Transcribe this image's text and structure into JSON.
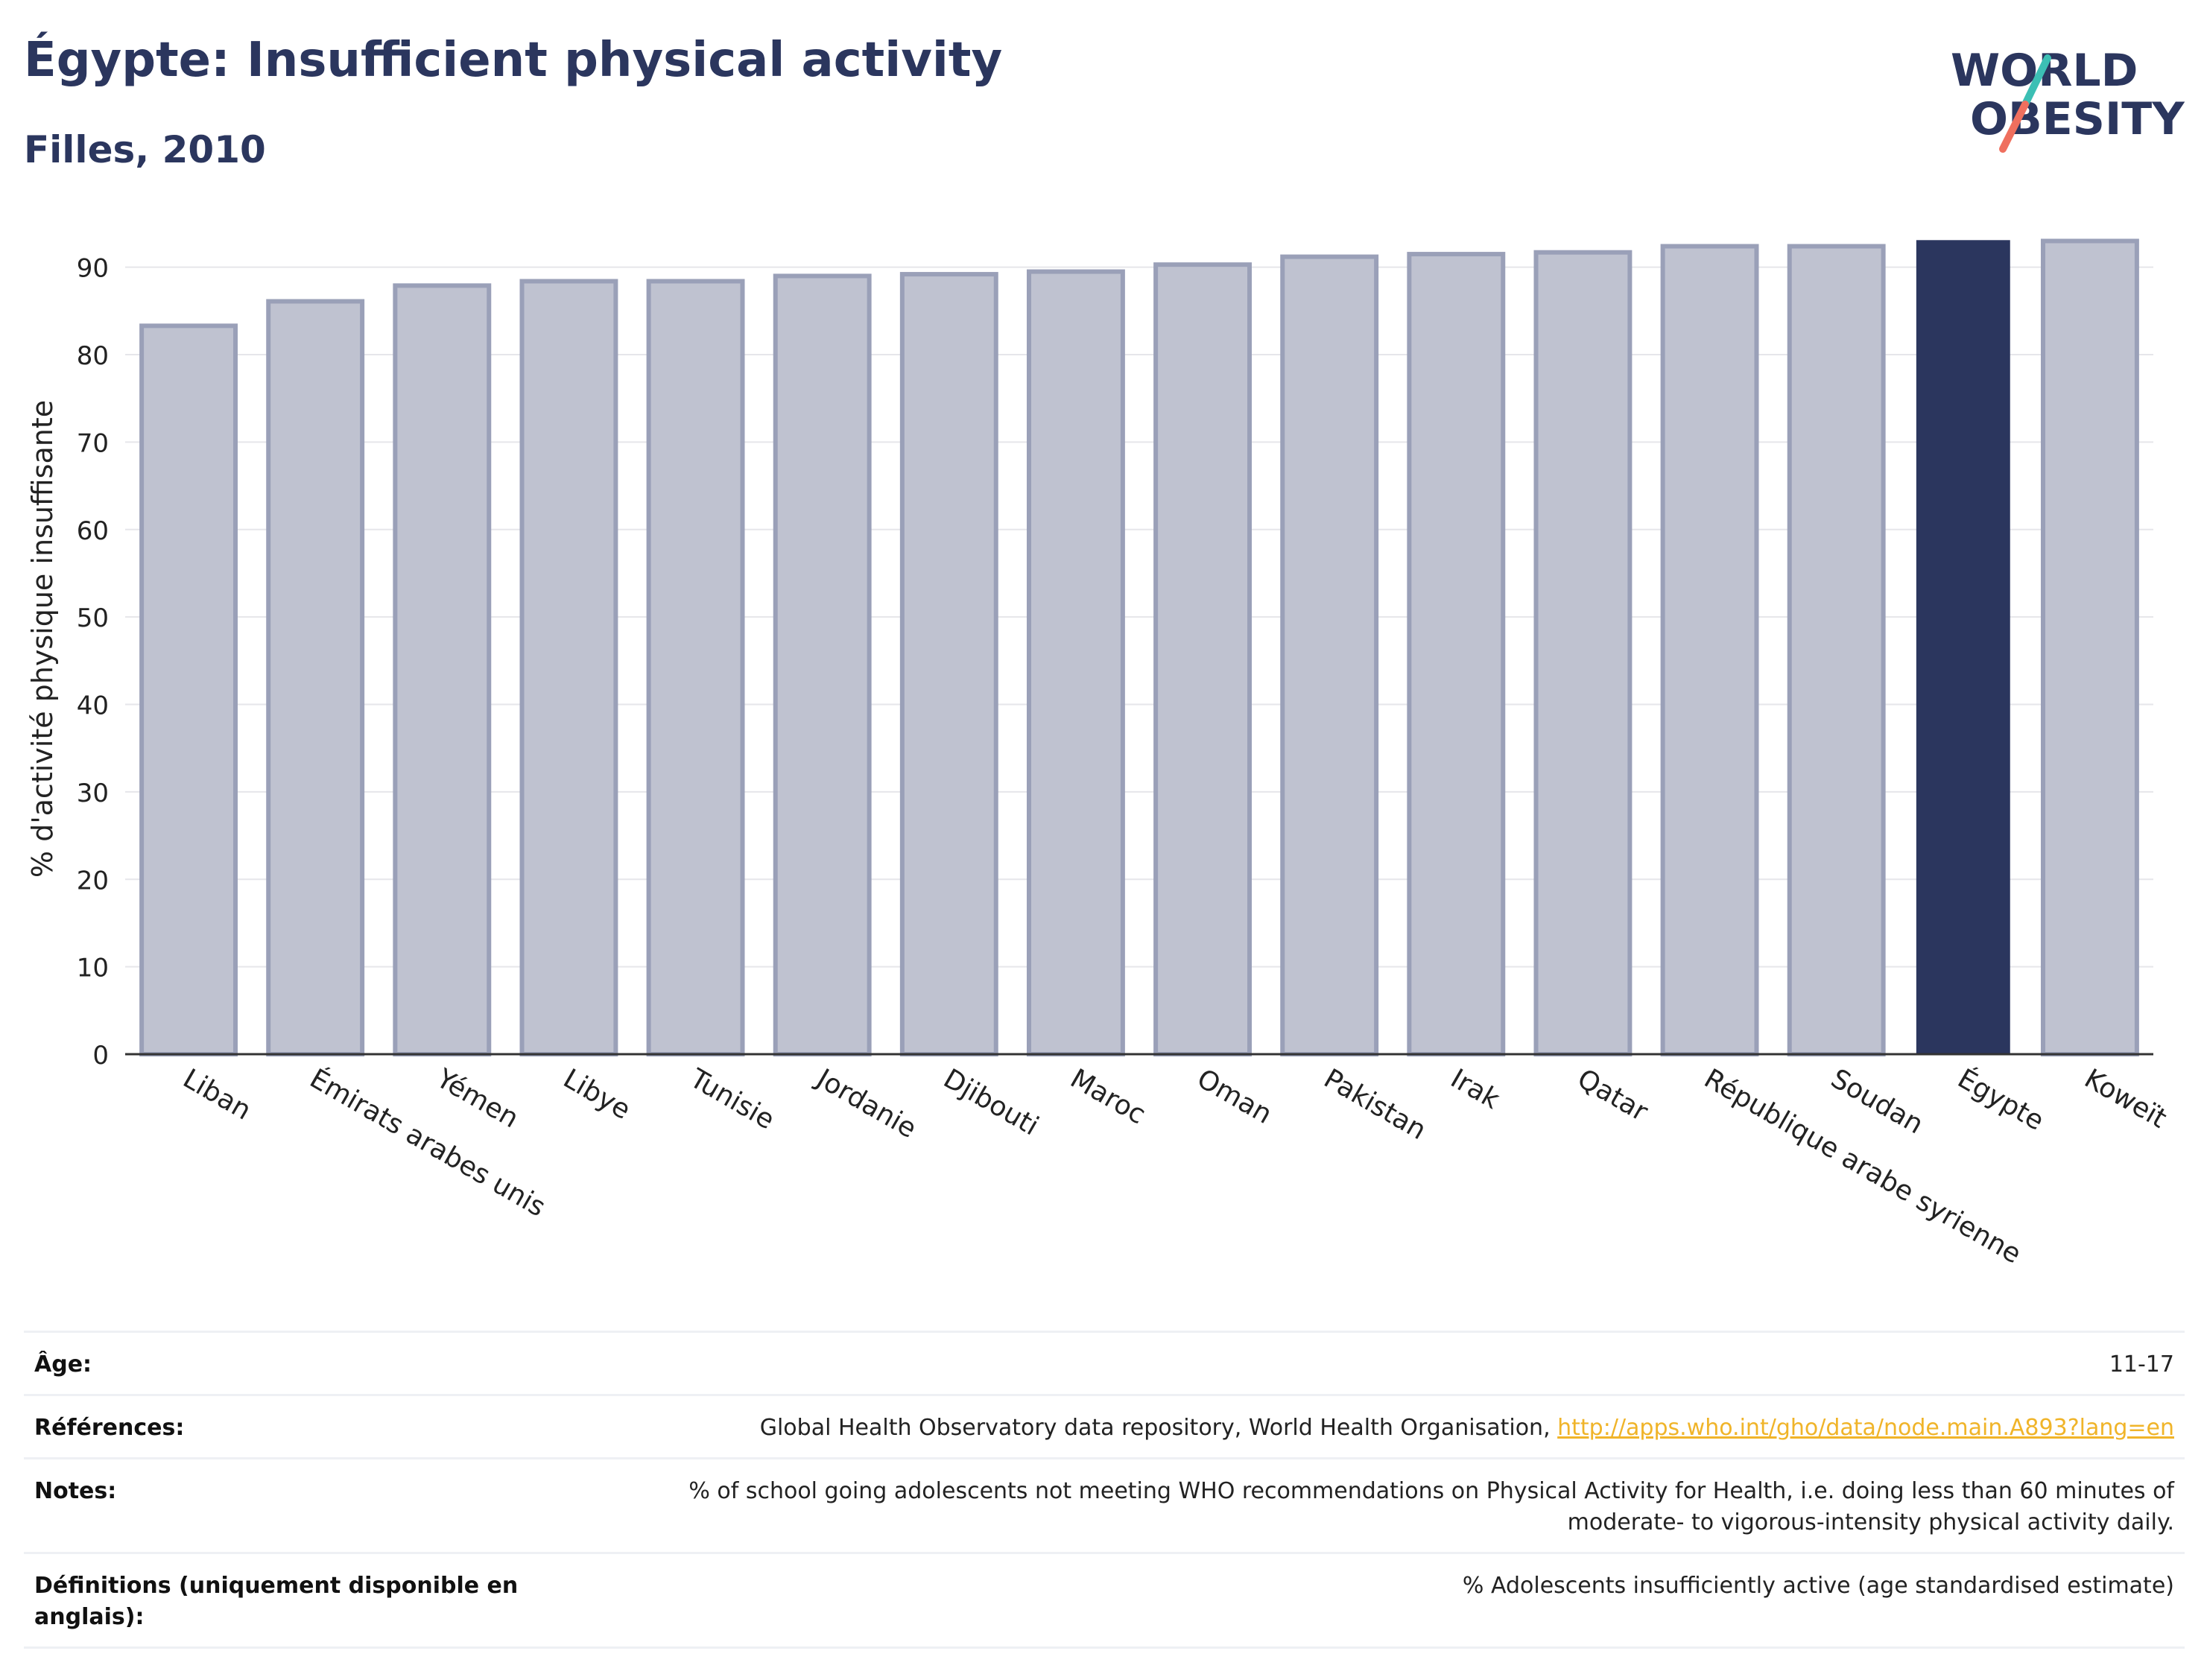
{
  "header": {
    "title": "Égypte: Insufficient physical activity",
    "subtitle": "Filles, 2010"
  },
  "logo": {
    "line1": "WORLD",
    "line2": "OBESITY",
    "colors": {
      "text": "#2b365e",
      "slash_teal": "#3cbfb4",
      "slash_coral": "#ef6f5e"
    }
  },
  "chart_data": {
    "type": "bar",
    "categories": [
      "Liban",
      "Émirats arabes unis",
      "Yémen",
      "Libye",
      "Tunisie",
      "Jordanie",
      "Djibouti",
      "Maroc",
      "Oman",
      "Pakistan",
      "Irak",
      "Qatar",
      "République arabe syrienne",
      "Soudan",
      "Égypte",
      "Koweït"
    ],
    "values": [
      83.3,
      86.1,
      87.9,
      88.4,
      88.4,
      89.0,
      89.2,
      89.5,
      90.3,
      91.2,
      91.5,
      91.7,
      92.4,
      92.4,
      93.1,
      93.0
    ],
    "highlight": "Égypte",
    "ylabel": "% d'activité physique insuffisante",
    "xlabel": "",
    "ylim": [
      0,
      95
    ],
    "yticks": [
      0,
      10,
      20,
      30,
      40,
      50,
      60,
      70,
      80,
      90
    ],
    "grid": true,
    "colors": {
      "bar": "#bfc2d0",
      "bar_border": "#9aa0b8",
      "highlight": "#2b365e",
      "grid": "#e6e6ea",
      "axis": "#333333"
    }
  },
  "info": {
    "age_label": "Âge:",
    "age_value": "11-17",
    "refs_label": "Références:",
    "refs_text": "Global Health Observatory data repository, World Health Organisation, ",
    "refs_link": "http://apps.who.int/gho/data/node.main.A893?lang=en",
    "notes_label": "Notes:",
    "notes_line1": "% of school going adolescents not meeting WHO recommendations on Physical Activity for Health, i.e. doing less than 60 minutes of",
    "notes_line2": "moderate- to vigorous-intensity physical activity daily.",
    "defs_label_line1": "Définitions (uniquement disponible en",
    "defs_label_line2": "anglais):",
    "defs_value": "% Adolescents insufficiently active (age standardised estimate)"
  }
}
